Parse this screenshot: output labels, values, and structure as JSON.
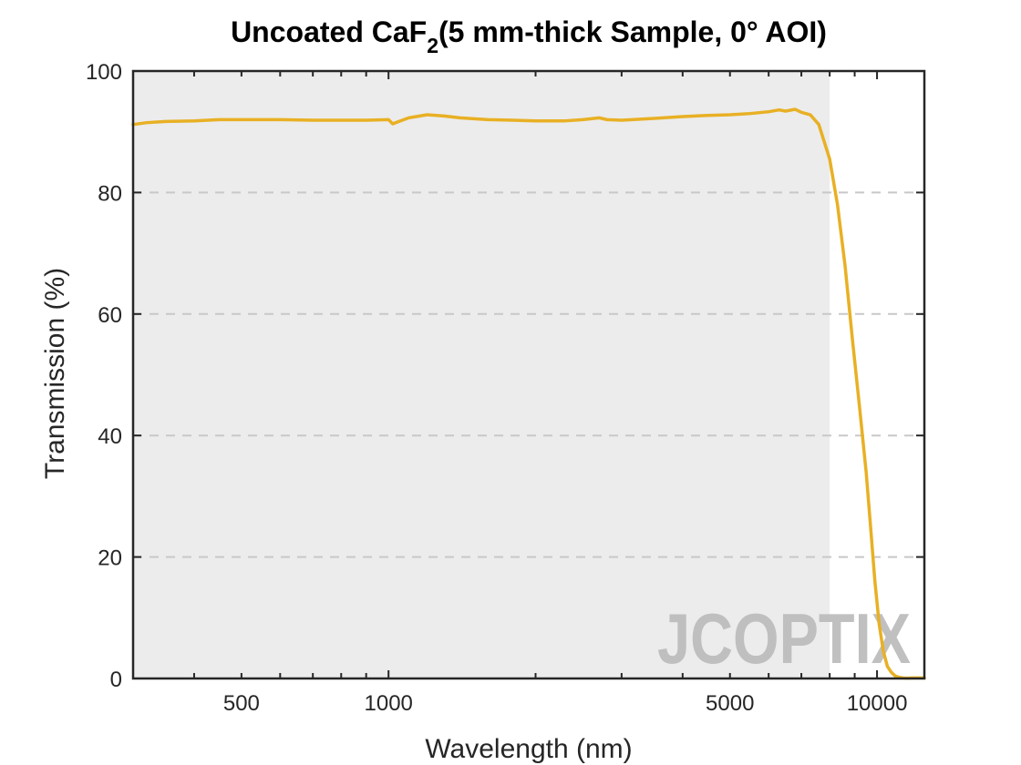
{
  "chart_data": {
    "type": "line",
    "title": {
      "main": "Uncoated CaF",
      "subscript": "2",
      "rest": "(5 mm-thick Sample, 0° AOI)"
    },
    "xlabel": "Wavelength (nm)",
    "ylabel": "Transmission (%)",
    "xscale": "log",
    "xlim": [
      300,
      12500
    ],
    "ylim": [
      0,
      100
    ],
    "xticks": [
      500,
      1000,
      5000,
      10000
    ],
    "xtick_labels": [
      "500",
      "1000",
      "5000",
      "10000"
    ],
    "yticks": [
      0,
      20,
      40,
      60,
      80,
      100
    ],
    "ytick_labels": [
      "0",
      "20",
      "40",
      "60",
      "80",
      "100"
    ],
    "grid": "horizontal dashed",
    "shaded_region": [
      300,
      8000
    ],
    "colors": {
      "line": "#e8b024",
      "shade": "#ececec",
      "grid": "#c8c8c8",
      "axes": "#262626"
    },
    "watermark": "JCOPTIX",
    "series": [
      {
        "x": [
          300,
          320,
          350,
          400,
          450,
          500,
          600,
          700,
          800,
          900,
          1000,
          1020,
          1050,
          1100,
          1200,
          1300,
          1400,
          1600,
          1800,
          2000,
          2300,
          2500,
          2700,
          2800,
          3000,
          3500,
          4000,
          4500,
          5000,
          5500,
          6000,
          6300,
          6500,
          6800,
          7000,
          7300,
          7600,
          8000,
          8300,
          8600,
          8900,
          9200,
          9500,
          9700,
          9900,
          10100,
          10300,
          10500,
          10700,
          10900,
          11100,
          11300,
          11500,
          11800,
          12100,
          12500
        ],
        "y": [
          91.2,
          91.5,
          91.7,
          91.8,
          92.0,
          92.0,
          92.0,
          91.9,
          91.9,
          91.9,
          92.0,
          91.3,
          91.7,
          92.3,
          92.8,
          92.6,
          92.3,
          92.0,
          91.9,
          91.8,
          91.8,
          92.0,
          92.3,
          92.0,
          91.9,
          92.2,
          92.5,
          92.7,
          92.8,
          93.0,
          93.3,
          93.6,
          93.4,
          93.7,
          93.2,
          92.8,
          91.2,
          85.5,
          78.0,
          68.0,
          56.0,
          45.0,
          34.0,
          25.0,
          16.0,
          9.0,
          4.5,
          2.0,
          1.0,
          0.4,
          0.2,
          0.1,
          0.05,
          0.1,
          0.1,
          0.1
        ]
      }
    ]
  }
}
